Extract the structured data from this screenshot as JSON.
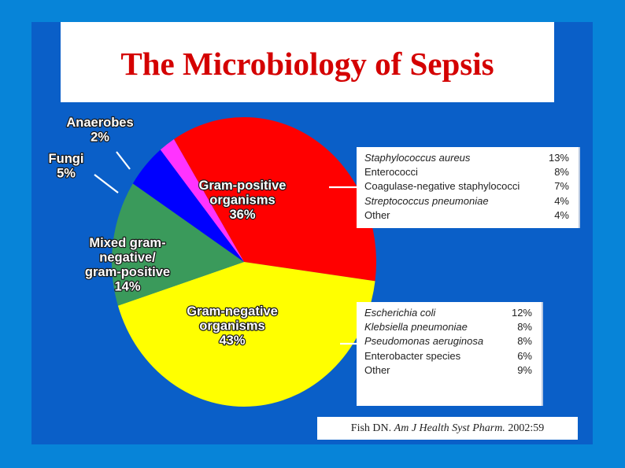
{
  "title": "The Microbiology of Sepsis",
  "citation": {
    "author": "Fish DN.",
    "journal": "Am J Health Syst Pharm.",
    "year": "2002:59"
  },
  "chart_data": {
    "type": "pie",
    "title": "The Microbiology of Sepsis",
    "slices": [
      {
        "label_lines": [
          "Gram-positive",
          "organisms",
          "36%"
        ],
        "value": 36,
        "color": "#ff0000"
      },
      {
        "label_lines": [
          "Gram-negative",
          "organisms",
          "43%"
        ],
        "value": 43,
        "color": "#ffff00"
      },
      {
        "label_lines": [
          "Mixed gram-",
          "negative/",
          "gram-positive",
          "14%"
        ],
        "value": 14,
        "color": "#3a9a5b"
      },
      {
        "label_lines": [
          "Fungi",
          "5%"
        ],
        "value": 5,
        "color": "#0000ff"
      },
      {
        "label_lines": [
          "Anaerobes",
          "2%"
        ],
        "value": 2,
        "color": "#ff33ff"
      }
    ],
    "breakdowns": [
      {
        "parent": "Gram-positive organisms",
        "rows": [
          {
            "name": "Staphylococcus aureus",
            "value": "13%",
            "italic": true
          },
          {
            "name": "Enterococci",
            "value": "8%",
            "italic": false
          },
          {
            "name": "Coagulase-negative staphylococci",
            "value": "7%",
            "italic": false
          },
          {
            "name": "Streptococcus pneumoniae",
            "value": "4%",
            "italic": true
          },
          {
            "name": "Other",
            "value": "4%",
            "italic": false
          }
        ]
      },
      {
        "parent": "Gram-negative organisms",
        "rows": [
          {
            "name": "Escherichia coli",
            "value": "12%",
            "italic": true
          },
          {
            "name": "Klebsiella pneumoniae",
            "value": "8%",
            "italic": true
          },
          {
            "name": "Pseudomonas aeruginosa",
            "value": "8%",
            "italic": true
          },
          {
            "name": "Enterobacter species",
            "value": "6%",
            "italic": false
          },
          {
            "name": "Other",
            "value": "9%",
            "italic": false
          }
        ]
      }
    ]
  }
}
